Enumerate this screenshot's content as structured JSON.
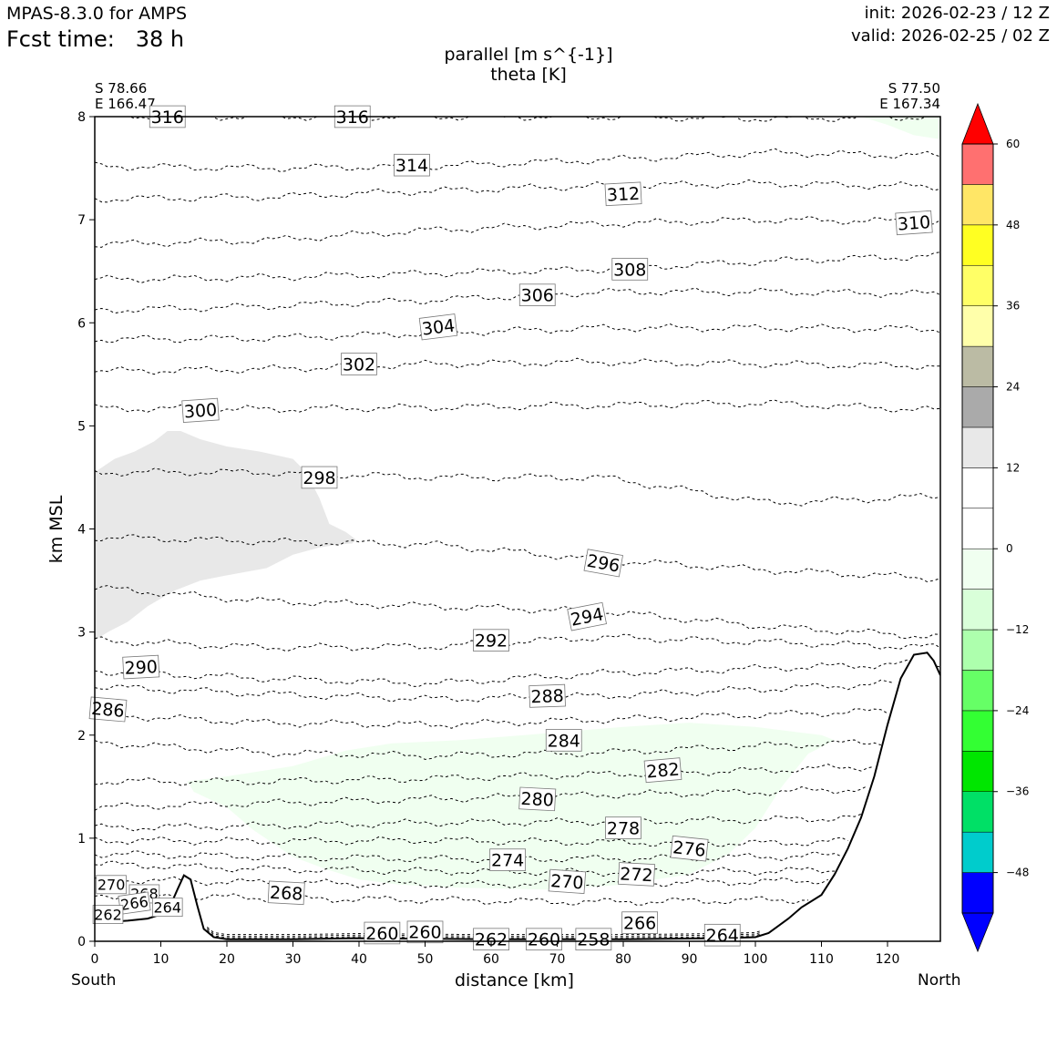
{
  "header": {
    "model": "MPAS-8.3.0 for AMPS",
    "fcst_label": "Fcst time:",
    "fcst_value": "38 h",
    "init": "init: 2026-02-23 / 12 Z",
    "valid": "valid: 2026-02-25 / 02 Z"
  },
  "corners": {
    "left_lat": "S 78.66",
    "left_lon": "E 166.47",
    "right_lat": "S 77.50",
    "right_lon": "E 167.34"
  },
  "ends": {
    "south": "South",
    "north": "North"
  },
  "chart_data": {
    "type": "contour",
    "title": "parallel [m s^{-1}]",
    "subtitle": "theta [K]",
    "xlabel": "distance [km]",
    "ylabel": "km MSL",
    "xlim": [
      0,
      128
    ],
    "ylim": [
      0,
      8
    ],
    "xticks": [
      "0",
      "10",
      "20",
      "30",
      "40",
      "50",
      "60",
      "70",
      "80",
      "90",
      "100",
      "110",
      "120"
    ],
    "yticks": [
      "0",
      "1",
      "2",
      "3",
      "4",
      "5",
      "6",
      "7",
      "8"
    ],
    "colorbar": {
      "levels": [
        -54,
        -48,
        -42,
        -36,
        -30,
        -24,
        -18,
        -12,
        -6,
        0,
        6,
        12,
        18,
        24,
        30,
        36,
        42,
        48,
        54,
        60
      ],
      "colors": [
        "#0000ff",
        "#00cccc",
        "#00e066",
        "#00e600",
        "#33ff33",
        "#66ff66",
        "#adffad",
        "#d9ffd9",
        "#f0fff0",
        "#ffffff",
        "#ffffff",
        "#e8e8e8",
        "#aaaaaa",
        "#bbbba4",
        "#ffffaa",
        "#ffff66",
        "#ffff22",
        "#ffe666",
        "#ff7070",
        "#ff0000"
      ],
      "ticks": [
        "60",
        "48",
        "36",
        "24",
        "12",
        "0",
        "−12",
        "−24",
        "−36",
        "−48"
      ],
      "tick_values": [
        60,
        48,
        36,
        24,
        12,
        0,
        -12,
        -24,
        -36,
        -48
      ],
      "under_color": "#0000ff",
      "over_color": "#ff0000"
    },
    "terrain": [
      [
        0,
        0.18
      ],
      [
        5,
        0.2
      ],
      [
        8,
        0.22
      ],
      [
        11,
        0.28
      ],
      [
        12.5,
        0.5
      ],
      [
        13.5,
        0.64
      ],
      [
        14.5,
        0.6
      ],
      [
        15.5,
        0.35
      ],
      [
        16.5,
        0.12
      ],
      [
        18,
        0.04
      ],
      [
        20,
        0.02
      ],
      [
        30,
        0.02
      ],
      [
        40,
        0.03
      ],
      [
        60,
        0.02
      ],
      [
        80,
        0.02
      ],
      [
        95,
        0.03
      ],
      [
        100,
        0.04
      ],
      [
        102,
        0.08
      ],
      [
        105,
        0.22
      ],
      [
        107,
        0.33
      ],
      [
        110,
        0.45
      ],
      [
        112,
        0.65
      ],
      [
        114,
        0.9
      ],
      [
        116,
        1.2
      ],
      [
        118,
        1.6
      ],
      [
        120,
        2.1
      ],
      [
        122,
        2.55
      ],
      [
        124,
        2.78
      ],
      [
        126,
        2.8
      ],
      [
        127,
        2.72
      ],
      [
        128,
        2.58
      ]
    ],
    "wind_regions": [
      {
        "name": "weak-positive-upper-left",
        "color": "#e8e8e8",
        "polygon": [
          [
            0,
            2.92
          ],
          [
            2,
            3.0
          ],
          [
            5,
            3.1
          ],
          [
            8,
            3.25
          ],
          [
            12,
            3.4
          ],
          [
            16,
            3.5
          ],
          [
            20,
            3.55
          ],
          [
            26,
            3.62
          ],
          [
            30,
            3.75
          ],
          [
            34,
            3.82
          ],
          [
            37,
            3.85
          ],
          [
            39,
            3.86
          ],
          [
            39.5,
            3.9
          ],
          [
            38,
            3.97
          ],
          [
            35.5,
            4.05
          ],
          [
            34,
            4.3
          ],
          [
            32,
            4.55
          ],
          [
            30,
            4.68
          ],
          [
            25,
            4.75
          ],
          [
            20,
            4.8
          ],
          [
            16,
            4.87
          ],
          [
            13,
            4.95
          ],
          [
            11,
            4.95
          ],
          [
            9,
            4.85
          ],
          [
            6,
            4.75
          ],
          [
            3,
            4.68
          ],
          [
            0,
            4.55
          ]
        ]
      },
      {
        "name": "weak-negative-low-level",
        "color": "#f0fff0",
        "polygon": [
          [
            14,
            1.55
          ],
          [
            20,
            1.6
          ],
          [
            30,
            1.7
          ],
          [
            38,
            1.85
          ],
          [
            45,
            1.92
          ],
          [
            55,
            1.95
          ],
          [
            65,
            2.0
          ],
          [
            80,
            2.08
          ],
          [
            90,
            2.12
          ],
          [
            100,
            2.08
          ],
          [
            110,
            2.0
          ],
          [
            112,
            1.95
          ],
          [
            108,
            1.82
          ],
          [
            104,
            1.5
          ],
          [
            100,
            1.1
          ],
          [
            96,
            0.85
          ],
          [
            90,
            0.65
          ],
          [
            80,
            0.55
          ],
          [
            70,
            0.5
          ],
          [
            55,
            0.52
          ],
          [
            46,
            0.55
          ],
          [
            40,
            0.6
          ],
          [
            35,
            0.7
          ],
          [
            30,
            0.82
          ],
          [
            27,
            0.95
          ],
          [
            24,
            1.08
          ],
          [
            20,
            1.3
          ],
          [
            15,
            1.45
          ]
        ]
      },
      {
        "name": "weak-positive-top-right",
        "color": "#f0fff0",
        "polygon": [
          [
            116,
            8.0
          ],
          [
            128,
            8.0
          ],
          [
            128,
            7.78
          ],
          [
            124,
            7.82
          ],
          [
            120,
            7.92
          ]
        ]
      }
    ],
    "theta_isentropes": [
      {
        "value": 316,
        "y_km": [
          8.0,
          8.0,
          8.0,
          8.0,
          7.98,
          8.0
        ]
      },
      {
        "value": 314,
        "y_km": [
          7.52,
          7.5,
          7.52,
          7.58,
          7.65,
          7.62
        ]
      },
      {
        "value": 312,
        "y_km": [
          7.2,
          7.22,
          7.28,
          7.33,
          7.35,
          7.32
        ]
      },
      {
        "value": 310,
        "y_km": [
          6.76,
          6.8,
          6.9,
          6.96,
          7.0,
          6.98
        ]
      },
      {
        "value": 308,
        "y_km": [
          6.42,
          6.44,
          6.48,
          6.52,
          6.6,
          6.65
        ]
      },
      {
        "value": 306,
        "y_km": [
          6.12,
          6.16,
          6.22,
          6.3,
          6.3,
          6.28
        ]
      },
      {
        "value": 304,
        "y_km": [
          5.84,
          5.85,
          5.9,
          5.95,
          5.95,
          5.94
        ]
      },
      {
        "value": 302,
        "y_km": [
          5.53,
          5.55,
          5.6,
          5.62,
          5.6,
          5.58
        ]
      },
      {
        "value": 300,
        "y_km": [
          5.17,
          5.16,
          5.18,
          5.2,
          5.22,
          5.15
        ]
      },
      {
        "value": 298,
        "y_km": [
          4.55,
          4.55,
          4.5,
          4.5,
          4.25,
          4.32
        ]
      },
      {
        "value": 296,
        "y_km": [
          3.92,
          3.88,
          3.85,
          3.7,
          3.6,
          3.52
        ]
      },
      {
        "value": 294,
        "y_km": [
          3.43,
          3.3,
          3.25,
          3.2,
          3.05,
          2.95
        ]
      },
      {
        "value": 292,
        "y_km": [
          2.92,
          2.85,
          2.86,
          2.95,
          2.9,
          2.85
        ]
      },
      {
        "value": 290,
        "y_km": [
          2.62,
          2.55,
          2.5,
          2.6,
          2.65,
          2.7
        ]
      },
      {
        "value": 288,
        "y_km": [
          2.47,
          2.4,
          2.35,
          2.38,
          2.45,
          2.52
        ]
      },
      {
        "value": 286,
        "y_km": [
          2.2,
          2.12,
          2.1,
          2.15,
          2.2,
          2.25
        ]
      },
      {
        "value": 284,
        "y_km": [
          1.93,
          1.83,
          1.8,
          1.83,
          1.9,
          1.95
        ]
      },
      {
        "value": 282,
        "y_km": [
          1.55,
          1.55,
          1.58,
          1.62,
          1.66,
          1.72
        ]
      },
      {
        "value": 280,
        "y_km": [
          1.3,
          1.34,
          1.38,
          1.42,
          1.45,
          1.5
        ]
      },
      {
        "value": 278,
        "y_km": [
          1.1,
          1.12,
          1.15,
          1.16,
          1.18,
          1.22
        ]
      },
      {
        "value": 276,
        "y_km": [
          0.98,
          0.97,
          0.98,
          0.96,
          0.95,
          1.0
        ]
      },
      {
        "value": 274,
        "y_km": [
          0.85,
          0.82,
          0.8,
          0.8,
          0.82,
          0.86
        ]
      },
      {
        "value": 272,
        "y_km": [
          0.75,
          0.7,
          0.68,
          0.67,
          0.68,
          0.72
        ]
      },
      {
        "value": 270,
        "y_km": [
          0.6,
          0.57,
          0.55,
          0.56,
          0.58,
          0.62
        ]
      },
      {
        "value": 268,
        "y_km": [
          0.45,
          0.42,
          0.4,
          0.38,
          0.4,
          0.42
        ]
      }
    ],
    "contour_labels": [
      {
        "text": "316",
        "x": 11,
        "y": 8.0,
        "angle": 0
      },
      {
        "text": "316",
        "x": 39,
        "y": 8.0,
        "angle": 0
      },
      {
        "text": "314",
        "x": 48,
        "y": 7.53,
        "angle": 0
      },
      {
        "text": "312",
        "x": 80,
        "y": 7.25,
        "angle": -3
      },
      {
        "text": "310",
        "x": 124,
        "y": 6.97,
        "angle": -4
      },
      {
        "text": "308",
        "x": 81,
        "y": 6.52,
        "angle": 0
      },
      {
        "text": "306",
        "x": 67,
        "y": 6.27,
        "angle": 0
      },
      {
        "text": "304",
        "x": 52,
        "y": 5.96,
        "angle": -7
      },
      {
        "text": "302",
        "x": 40,
        "y": 5.6,
        "angle": 0
      },
      {
        "text": "300",
        "x": 16,
        "y": 5.15,
        "angle": -4
      },
      {
        "text": "298",
        "x": 34,
        "y": 4.5,
        "angle": 0
      },
      {
        "text": "296",
        "x": 77,
        "y": 3.67,
        "angle": 10
      },
      {
        "text": "294",
        "x": 74.5,
        "y": 3.15,
        "angle": -11
      },
      {
        "text": "292",
        "x": 60,
        "y": 2.92,
        "angle": 0
      },
      {
        "text": "290",
        "x": 7,
        "y": 2.66,
        "angle": -3
      },
      {
        "text": "288",
        "x": 68.5,
        "y": 2.38,
        "angle": -2
      },
      {
        "text": "286",
        "x": 2,
        "y": 2.25,
        "angle": 5
      },
      {
        "text": "284",
        "x": 71,
        "y": 1.95,
        "angle": 0
      },
      {
        "text": "282",
        "x": 86,
        "y": 1.66,
        "angle": -5
      },
      {
        "text": "280",
        "x": 67,
        "y": 1.38,
        "angle": 3
      },
      {
        "text": "278",
        "x": 80,
        "y": 1.1,
        "angle": 0
      },
      {
        "text": "276",
        "x": 90,
        "y": 0.9,
        "angle": 6
      },
      {
        "text": "274",
        "x": 62.5,
        "y": 0.79,
        "angle": 0
      },
      {
        "text": "272",
        "x": 82,
        "y": 0.65,
        "angle": 3
      },
      {
        "text": "270",
        "x": 2.5,
        "y": 0.55,
        "angle": 0
      },
      {
        "text": "270",
        "x": 71.5,
        "y": 0.58,
        "angle": 4
      },
      {
        "text": "268",
        "x": 7.5,
        "y": 0.46,
        "angle": 0
      },
      {
        "text": "268",
        "x": 29,
        "y": 0.47,
        "angle": 3
      },
      {
        "text": "266",
        "x": 6,
        "y": 0.37,
        "angle": -8
      },
      {
        "text": "264",
        "x": 11,
        "y": 0.33,
        "angle": 0
      },
      {
        "text": "262",
        "x": 2,
        "y": 0.26,
        "angle": 0
      },
      {
        "text": "260",
        "x": 43.5,
        "y": 0.08,
        "angle": 0
      },
      {
        "text": "260",
        "x": 50,
        "y": 0.09,
        "angle": 0
      },
      {
        "text": "266",
        "x": 82.5,
        "y": 0.18,
        "angle": 0
      },
      {
        "text": "262",
        "x": 60,
        "y": 0.02,
        "angle": 0
      },
      {
        "text": "260",
        "x": 68,
        "y": 0.02,
        "angle": 0
      },
      {
        "text": "258",
        "x": 75.5,
        "y": 0.02,
        "angle": 0
      },
      {
        "text": "264",
        "x": 95,
        "y": 0.06,
        "angle": 0
      }
    ]
  }
}
